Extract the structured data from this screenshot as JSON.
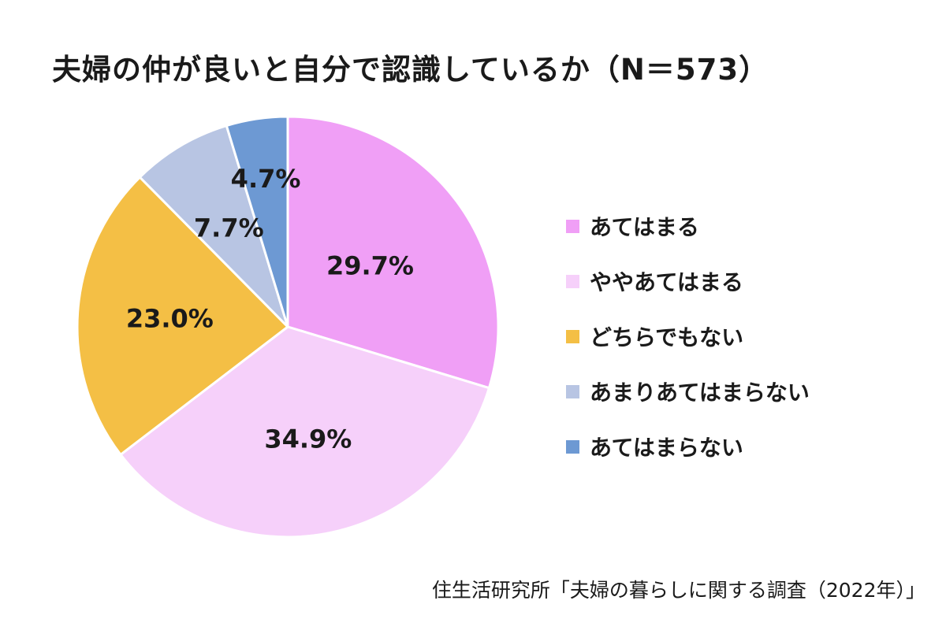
{
  "chart_data": {
    "type": "pie",
    "title": "夫婦の仲が良いと自分で認識しているか（N＝573）",
    "slices": [
      {
        "label": "あてはまる",
        "value": 29.7,
        "value_label": "29.7%",
        "color": "#f09ff6"
      },
      {
        "label": "ややあてはまる",
        "value": 34.9,
        "value_label": "34.9%",
        "color": "#f6d0fa"
      },
      {
        "label": "どちらでもない",
        "value": 23.0,
        "value_label": "23.0%",
        "color": "#f4bf45"
      },
      {
        "label": "あまりあてはまらない",
        "value": 7.7,
        "value_label": "7.7%",
        "color": "#b8c5e3"
      },
      {
        "label": "あてはまらない",
        "value": 4.7,
        "value_label": "4.7%",
        "color": "#6d99d3"
      }
    ],
    "legend_position": "right",
    "start": "12 o'clock",
    "direction": "clockwise"
  },
  "source": "住生活研究所「夫婦の暮らしに関する調査（2022年）」"
}
